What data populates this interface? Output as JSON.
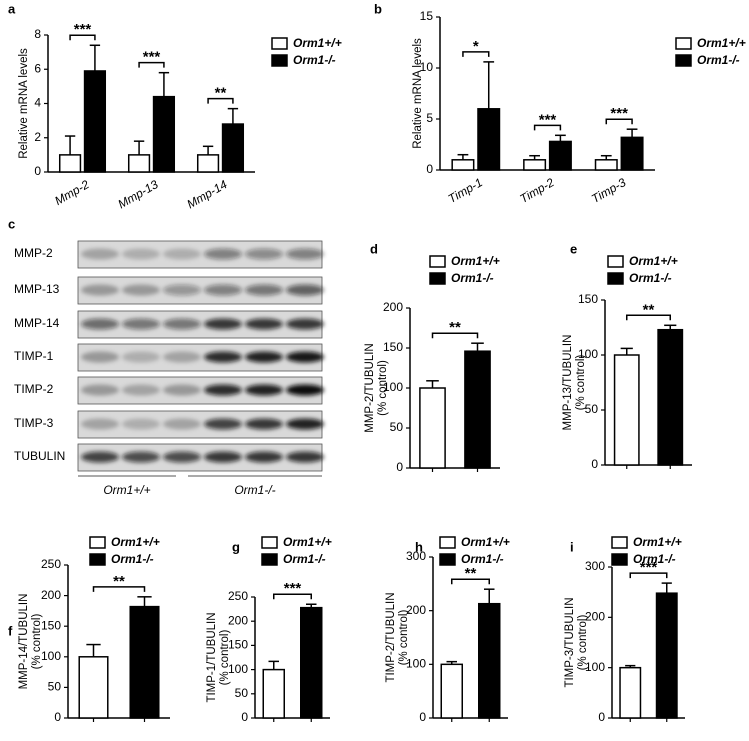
{
  "chart_data": [
    {
      "type": "bar",
      "panel_label": "a",
      "ylabel": [
        "Relative mRNA levels"
      ],
      "categories": [
        "Mmp-2",
        "Mmp-13",
        "Mmp-14"
      ],
      "series": [
        {
          "name": "Orm1+/+",
          "color": "#ffffff",
          "values": [
            1,
            1,
            1
          ],
          "errors": [
            1.1,
            0.8,
            0.5
          ]
        },
        {
          "name": "Orm1-/-",
          "color": "#000000",
          "values": [
            5.9,
            4.4,
            2.8
          ],
          "errors": [
            1.5,
            1.4,
            0.9
          ]
        }
      ],
      "significance": [
        "***",
        "***",
        "**"
      ],
      "ylim": [
        0,
        8
      ],
      "yticks": [
        0,
        2,
        4,
        6,
        8
      ]
    },
    {
      "type": "bar",
      "panel_label": "b",
      "ylabel": [
        "Relative mRNA levels"
      ],
      "categories": [
        "Timp-1",
        "Timp-2",
        "Timp-3"
      ],
      "series": [
        {
          "name": "Orm1+/+",
          "color": "#ffffff",
          "values": [
            1,
            1,
            1
          ],
          "errors": [
            0.5,
            0.4,
            0.4
          ]
        },
        {
          "name": "Orm1-/-",
          "color": "#000000",
          "values": [
            6,
            2.8,
            3.2
          ],
          "errors": [
            4.6,
            0.6,
            0.8
          ]
        }
      ],
      "significance": [
        "*",
        "***",
        "***"
      ],
      "ylim": [
        0,
        15
      ],
      "yticks": [
        0,
        5,
        10,
        15
      ]
    },
    {
      "type": "bar",
      "panel_label": "d",
      "ylabel": [
        "MMP-2/TUBULIN",
        "(% control)"
      ],
      "categories": [
        null
      ],
      "series": [
        {
          "name": "Orm1+/+",
          "color": "#ffffff",
          "values": [
            100
          ],
          "errors": [
            9
          ]
        },
        {
          "name": "Orm1-/-",
          "color": "#000000",
          "values": [
            146
          ],
          "errors": [
            10
          ]
        }
      ],
      "significance": [
        "**"
      ],
      "ylim": [
        0,
        200
      ],
      "yticks": [
        0,
        50,
        100,
        150,
        200
      ]
    },
    {
      "type": "bar",
      "panel_label": "e",
      "ylabel": [
        "MMP-13/TUBULIN",
        "(% control)"
      ],
      "categories": [
        null
      ],
      "series": [
        {
          "name": "Orm1+/+",
          "color": "#ffffff",
          "values": [
            100
          ],
          "errors": [
            6
          ]
        },
        {
          "name": "Orm1-/-",
          "color": "#000000",
          "values": [
            123
          ],
          "errors": [
            4
          ]
        }
      ],
      "significance": [
        "**"
      ],
      "ylim": [
        0,
        150
      ],
      "yticks": [
        0,
        50,
        100,
        150
      ]
    },
    {
      "type": "bar",
      "panel_label": "f",
      "ylabel": [
        "MMP-14/TUBULIN",
        "(% control)"
      ],
      "categories": [
        null
      ],
      "series": [
        {
          "name": "Orm1+/+",
          "color": "#ffffff",
          "values": [
            100
          ],
          "errors": [
            20
          ]
        },
        {
          "name": "Orm1-/-",
          "color": "#000000",
          "values": [
            182
          ],
          "errors": [
            16
          ]
        }
      ],
      "significance": [
        "**"
      ],
      "ylim": [
        0,
        250
      ],
      "yticks": [
        0,
        50,
        100,
        150,
        200,
        250
      ]
    },
    {
      "type": "bar",
      "panel_label": "g",
      "ylabel": [
        "TIMP-1/TUBULIN",
        "(% control)"
      ],
      "categories": [
        null
      ],
      "series": [
        {
          "name": "Orm1+/+",
          "color": "#ffffff",
          "values": [
            100
          ],
          "errors": [
            17
          ]
        },
        {
          "name": "Orm1-/-",
          "color": "#000000",
          "values": [
            228
          ],
          "errors": [
            7
          ]
        }
      ],
      "significance": [
        "***"
      ],
      "ylim": [
        0,
        250
      ],
      "yticks": [
        0,
        50,
        100,
        150,
        200,
        250
      ]
    },
    {
      "type": "bar",
      "panel_label": "h",
      "ylabel": [
        "TIMP-2/TUBULIN",
        "(% control)"
      ],
      "categories": [
        null
      ],
      "series": [
        {
          "name": "Orm1+/+",
          "color": "#ffffff",
          "values": [
            100
          ],
          "errors": [
            5
          ]
        },
        {
          "name": "Orm1-/-",
          "color": "#000000",
          "values": [
            213
          ],
          "errors": [
            27
          ]
        }
      ],
      "significance": [
        "**"
      ],
      "ylim": [
        0,
        300
      ],
      "yticks": [
        0,
        100,
        200,
        300
      ]
    },
    {
      "type": "bar",
      "panel_label": "i",
      "ylabel": [
        "TIMP-3/TUBULIN",
        "(% control)"
      ],
      "categories": [
        null
      ],
      "series": [
        {
          "name": "Orm1+/+",
          "color": "#ffffff",
          "values": [
            100
          ],
          "errors": [
            4
          ]
        },
        {
          "name": "Orm1-/-",
          "color": "#000000",
          "values": [
            248
          ],
          "errors": [
            20
          ]
        }
      ],
      "significance": [
        "***"
      ],
      "ylim": [
        0,
        300
      ],
      "yticks": [
        0,
        100,
        200,
        300
      ]
    }
  ],
  "blot": {
    "panel_label": "c",
    "rows": [
      "MMP-2",
      "MMP-13",
      "MMP-14",
      "TIMP-1",
      "TIMP-2",
      "TIMP-3",
      "TUBULIN"
    ],
    "groups": [
      "Orm1+/+",
      "Orm1-/-"
    ]
  }
}
